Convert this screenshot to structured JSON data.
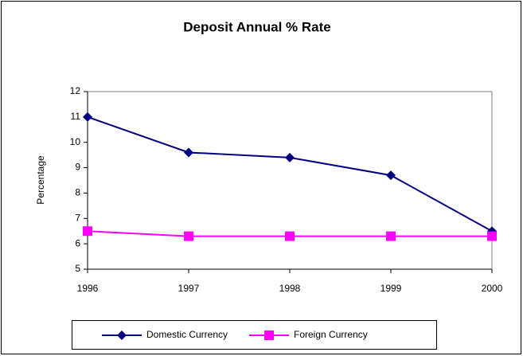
{
  "chart_data": {
    "type": "line",
    "title": "Deposit Annual % Rate",
    "y_label": "Percentage",
    "categories": [
      "1996",
      "1997",
      "1998",
      "1999",
      "2000"
    ],
    "series": [
      {
        "name": "Domestic Currency",
        "color": "#000080",
        "marker": "diamond",
        "values": [
          11,
          9.6,
          9.4,
          8.7,
          6.5
        ]
      },
      {
        "name": "Foreign Currency",
        "color": "#ff00ff",
        "marker": "square",
        "values": [
          6.5,
          6.3,
          6.3,
          6.3,
          6.3
        ]
      }
    ],
    "ylim": [
      5,
      12
    ],
    "yticks": [
      5,
      6,
      7,
      8,
      9,
      10,
      11,
      12
    ],
    "grid": false,
    "legend": "bottom"
  }
}
